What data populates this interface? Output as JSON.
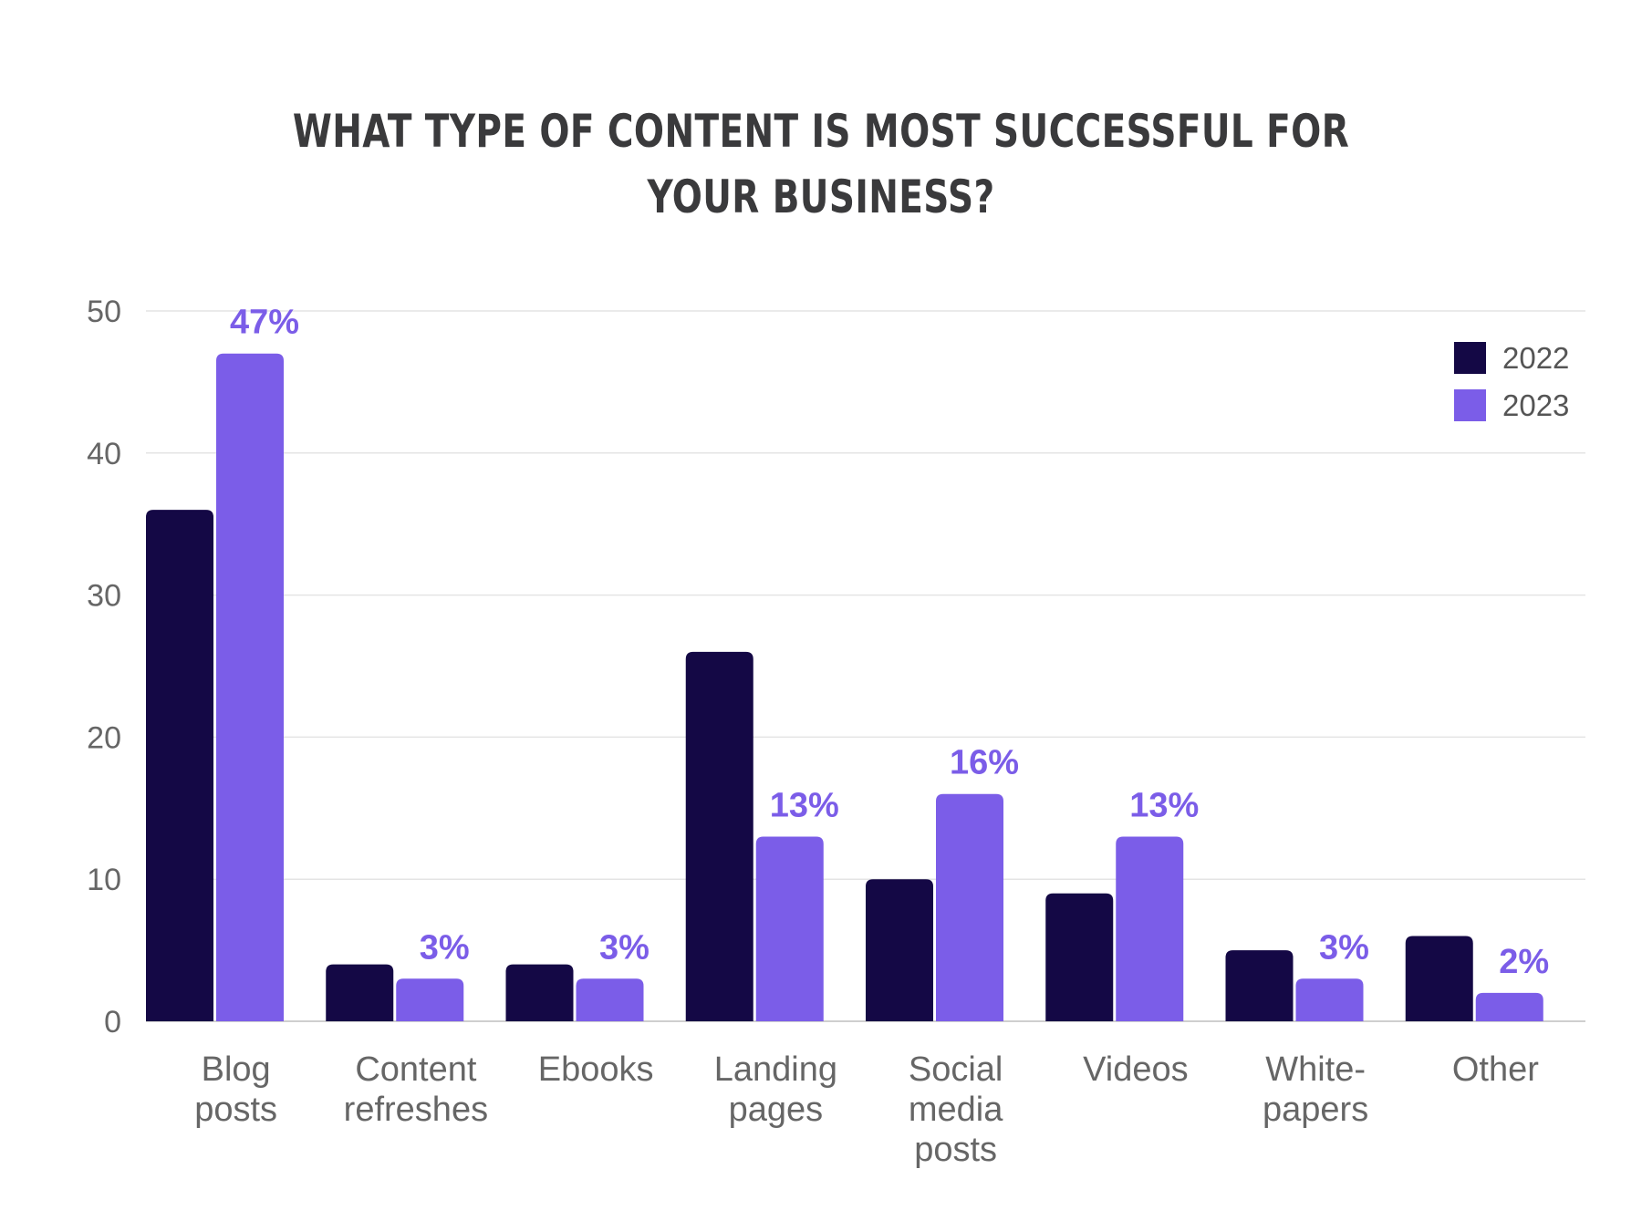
{
  "chart_data": {
    "type": "bar",
    "title_lines": [
      "WHAT TYPE OF CONTENT IS MOST SUCCESSFUL FOR",
      "YOUR BUSINESS?"
    ],
    "categories": [
      [
        "Blog",
        "posts"
      ],
      [
        "Content",
        "refreshes"
      ],
      [
        "Ebooks"
      ],
      [
        "Landing",
        "pages"
      ],
      [
        "Social",
        "media",
        "posts"
      ],
      [
        "Videos"
      ],
      [
        "White-",
        "papers"
      ],
      [
        "Other"
      ]
    ],
    "series": [
      {
        "name": "2022",
        "color": "#140845",
        "values": [
          36,
          4,
          4,
          26,
          10,
          9,
          5,
          6
        ]
      },
      {
        "name": "2023",
        "color": "#7b5de8",
        "values": [
          47,
          3,
          3,
          13,
          16,
          13,
          3,
          2
        ]
      }
    ],
    "data_labels": [
      "47%",
      "3%",
      "3%",
      "13%",
      "16%",
      "13%",
      "3%",
      "2%"
    ],
    "data_label_color": "#7b5de8",
    "ylim": [
      0,
      50
    ],
    "yticks": [
      0,
      10,
      20,
      30,
      40,
      50
    ],
    "grid": true,
    "legend_position": "top-right"
  }
}
